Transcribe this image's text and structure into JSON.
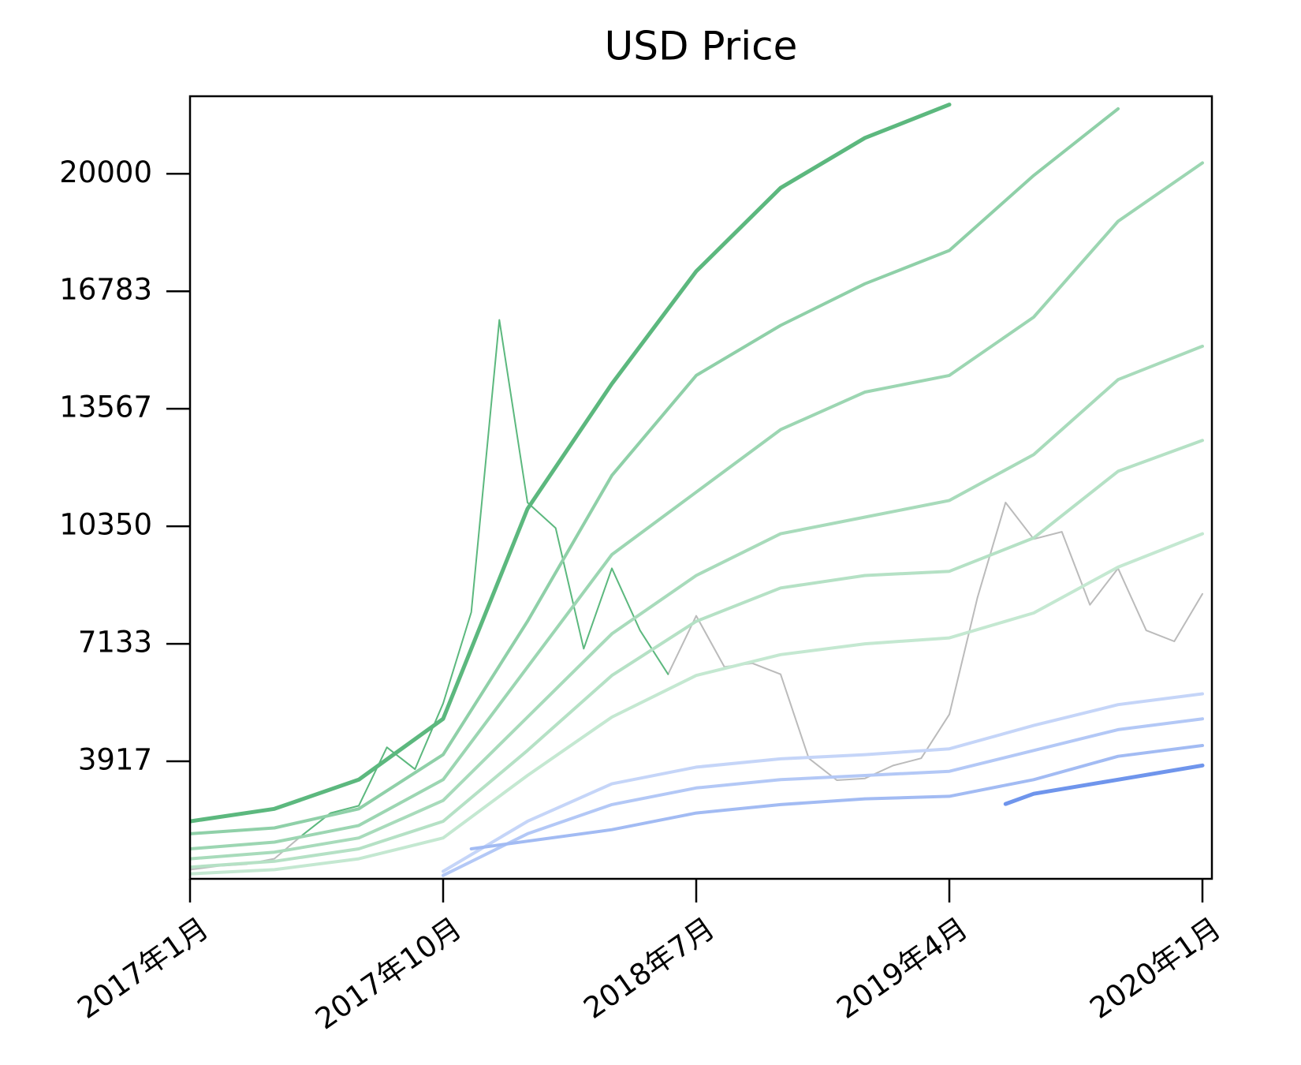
{
  "chart_data": {
    "type": "line",
    "title": "USD Price",
    "x": [
      "2017-01",
      "2017-02",
      "2017-03",
      "2017-04",
      "2017-05",
      "2017-06",
      "2017-07",
      "2017-08",
      "2017-09",
      "2017-10",
      "2017-11",
      "2017-12",
      "2018-01",
      "2018-02",
      "2018-03",
      "2018-04",
      "2018-05",
      "2018-06",
      "2018-07",
      "2018-08",
      "2018-09",
      "2018-10",
      "2018-11",
      "2018-12",
      "2019-01",
      "2019-02",
      "2019-03",
      "2019-04",
      "2019-05",
      "2019-06",
      "2019-07",
      "2019-08",
      "2019-09",
      "2019-10",
      "2019-11",
      "2019-12",
      "2020-01"
    ],
    "xlim": [
      "2017-01",
      "2020-01"
    ],
    "xticks": [
      {
        "value": "2017-01",
        "label": "2017年1月"
      },
      {
        "value": "2017-10",
        "label": "2017年10月"
      },
      {
        "value": "2018-07",
        "label": "2018年7月"
      },
      {
        "value": "2019-04",
        "label": "2019年4月"
      },
      {
        "value": "2020-01",
        "label": "2020年1月"
      }
    ],
    "ylim": [
      700,
      22122
    ],
    "yticks": [
      3917,
      7133,
      10350,
      13567,
      16783,
      20000
    ],
    "grid": false,
    "series": [
      {
        "color": "#bbbbbb",
        "width": 2,
        "values": [
          950,
          1050,
          1100,
          1250,
          1900,
          null,
          null,
          null,
          null,
          null,
          null,
          null,
          null,
          null,
          null,
          null,
          null,
          6300,
          7900,
          6500,
          6600,
          6300,
          4000,
          3400,
          3450,
          3800,
          4000,
          5200,
          8400,
          11000,
          10000,
          10200,
          8200,
          9200,
          7500,
          7200,
          8500
        ]
      },
      {
        "color": "#5cb87e",
        "width": 2,
        "values": [
          null,
          null,
          null,
          null,
          1900,
          2500,
          2700,
          4300,
          3700,
          5500,
          8000,
          16000,
          11000,
          10300,
          7000,
          9200,
          7500,
          6300,
          null,
          null,
          null,
          null,
          null,
          null,
          null,
          null,
          null,
          null,
          null,
          null,
          null,
          null,
          null,
          null,
          null,
          null,
          null
        ]
      },
      {
        "color": "#c5d5f8",
        "width": 4,
        "x": [
          "2017-10",
          "2018-01",
          "2018-04",
          "2018-07",
          "2018-10",
          "2019-01",
          "2019-04",
          "2019-07",
          "2019-10",
          "2020-01"
        ],
        "values": [
          906,
          2274,
          3301,
          3757,
          3985,
          4100,
          4259,
          4898,
          5468,
          5764
        ]
      },
      {
        "color": "#b3c8f6",
        "width": 4,
        "x": [
          "2017-10",
          "2018-01",
          "2018-04",
          "2018-07",
          "2018-10",
          "2019-01",
          "2019-04",
          "2019-07",
          "2019-10",
          "2020-01"
        ],
        "values": [
          792,
          1932,
          2731,
          3187,
          3415,
          3529,
          3643,
          4213,
          4784,
          5080
        ]
      },
      {
        "color": "#a2bbf3",
        "width": 4,
        "x": [
          "2017-11",
          "2018-04",
          "2018-07",
          "2018-10",
          "2019-01",
          "2019-04",
          "2019-07",
          "2019-10",
          "2020-01"
        ],
        "values": [
          1520,
          2046,
          2502,
          2731,
          2890,
          2959,
          3415,
          4054,
          4350
        ]
      },
      {
        "color": "#6f95ec",
        "width": 5,
        "x": [
          "2019-06",
          "2019-07",
          "2019-10",
          "2020-01"
        ],
        "values": [
          2750,
          3027,
          3415,
          3803
        ]
      },
      {
        "color": "#c4e8d1",
        "width": 4,
        "x": [
          "2017-01",
          "2017-04",
          "2017-07",
          "2017-10",
          "2018-01",
          "2018-04",
          "2018-07",
          "2018-10",
          "2019-01",
          "2019-04",
          "2019-07",
          "2019-10",
          "2020-01"
        ],
        "values": [
          837,
          951,
          1248,
          1818,
          3529,
          5126,
          6267,
          6837,
          7134,
          7294,
          7978,
          9233,
          10145
        ]
      },
      {
        "color": "#b5e1c5",
        "width": 4,
        "x": [
          "2017-01",
          "2017-04",
          "2017-07",
          "2017-10",
          "2018-01",
          "2018-04",
          "2018-07",
          "2018-10",
          "2019-01",
          "2019-04",
          "2019-07",
          "2019-10",
          "2020-01"
        ],
        "values": [
          1020,
          1180,
          1521,
          2274,
          4213,
          6267,
          7749,
          8662,
          9004,
          9118,
          10031,
          11856,
          12700
        ]
      },
      {
        "color": "#a8dbbb",
        "width": 4,
        "x": [
          "2017-01",
          "2017-04",
          "2017-07",
          "2017-10",
          "2018-01",
          "2018-04",
          "2018-07",
          "2018-10",
          "2019-01",
          "2019-04",
          "2019-07",
          "2019-10",
          "2020-01"
        ],
        "values": [
          1248,
          1430,
          1818,
          2844,
          5126,
          7407,
          9004,
          10145,
          10601,
          11057,
          12311,
          14366,
          15278
        ]
      },
      {
        "color": "#9cd6b2",
        "width": 4,
        "x": [
          "2017-01",
          "2017-04",
          "2017-07",
          "2017-10",
          "2018-01",
          "2018-04",
          "2018-07",
          "2018-10",
          "2019-01",
          "2019-04",
          "2019-07",
          "2019-10",
          "2020-01"
        ],
        "values": [
          1521,
          1704,
          2160,
          3415,
          6495,
          9575,
          11286,
          12996,
          14024,
          14479,
          16076,
          18700,
          20297
        ]
      },
      {
        "color": "#8fd0a8",
        "width": 4,
        "x": [
          "2017-01",
          "2017-04",
          "2017-07",
          "2017-10",
          "2018-01",
          "2018-04",
          "2018-07",
          "2018-10",
          "2019-01",
          "2019-04",
          "2019-07",
          "2019-10"
        ],
        "values": [
          1932,
          2092,
          2616,
          4100,
          7749,
          11742,
          14479,
          15848,
          16989,
          17901,
          19954,
          21779
        ]
      },
      {
        "color": "#5cb87e",
        "width": 5,
        "x": [
          "2017-01",
          "2017-04",
          "2017-07",
          "2017-10",
          "2018-01",
          "2018-04",
          "2018-07",
          "2018-10",
          "2019-01",
          "2019-04"
        ],
        "values": [
          2274,
          2616,
          3415,
          5080,
          10829,
          14251,
          17331,
          19612,
          20981,
          21894
        ]
      }
    ]
  }
}
